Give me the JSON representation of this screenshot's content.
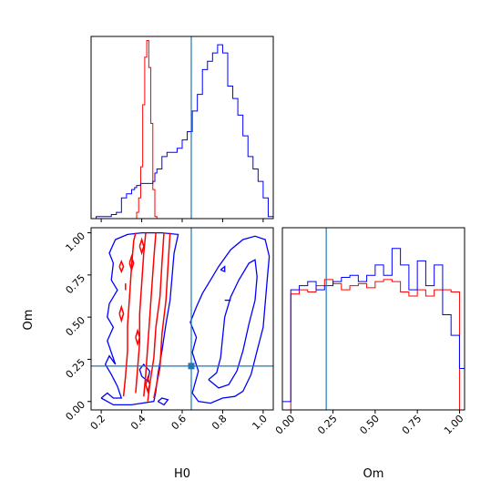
{
  "chart_data": {
    "type": "corner",
    "title": "",
    "parameters": [
      "H0",
      "Om"
    ],
    "colors": {
      "series_a": "#0000ff",
      "series_b": "#ff0000",
      "truth": "#1f77b4",
      "frame": "#000000"
    },
    "truth": {
      "H0": 0.645,
      "Om": 0.21
    },
    "axes": {
      "H0": {
        "label": "H0",
        "ticks": [
          "0.2",
          "0.4",
          "0.6",
          "0.8",
          "1.0"
        ],
        "tick_values": [
          0.2,
          0.4,
          0.6,
          0.8,
          1.0
        ],
        "lim": [
          0.15,
          1.05
        ]
      },
      "Om": {
        "label": "Om",
        "ticks": [
          "0.00",
          "0.25",
          "0.50",
          "0.75",
          "1.00"
        ],
        "tick_values": [
          0.0,
          0.25,
          0.5,
          0.75,
          1.0
        ],
        "lim": [
          -0.05,
          1.03
        ]
      }
    },
    "hist_H0": {
      "bin_edges": [
        0.15,
        0.175,
        0.2,
        0.225,
        0.25,
        0.275,
        0.3,
        0.325,
        0.35,
        0.365,
        0.375,
        0.385,
        0.395,
        0.405,
        0.415,
        0.425,
        0.435,
        0.445,
        0.455,
        0.465,
        0.475,
        0.5,
        0.525,
        0.55,
        0.575,
        0.6,
        0.625,
        0.65,
        0.675,
        0.7,
        0.725,
        0.75,
        0.775,
        0.8,
        0.825,
        0.85,
        0.875,
        0.9,
        0.925,
        0.95,
        0.975,
        1.0,
        1.025,
        1.05
      ],
      "series_a": [
        0,
        1,
        1,
        1,
        2,
        3,
        10,
        12,
        14,
        15,
        16,
        16,
        17,
        17,
        17,
        17,
        17,
        17,
        18,
        22,
        24,
        30,
        32,
        32,
        34,
        38,
        42,
        52,
        60,
        72,
        76,
        80,
        84,
        80,
        64,
        58,
        50,
        40,
        30,
        24,
        18,
        10,
        1
      ],
      "series_b": [
        0,
        0,
        0,
        0,
        0,
        0,
        0,
        0,
        0,
        0,
        3,
        10,
        25,
        55,
        78,
        86,
        73,
        46,
        14,
        1,
        0,
        0,
        0,
        0,
        0,
        0,
        0,
        0,
        0,
        0,
        0,
        0,
        0,
        0,
        0,
        0,
        0,
        0,
        0,
        0,
        0,
        0,
        0
      ]
    },
    "hist_Om": {
      "bin_edges": [
        -0.05,
        0.0,
        0.05,
        0.1,
        0.15,
        0.2,
        0.25,
        0.3,
        0.35,
        0.4,
        0.45,
        0.5,
        0.55,
        0.6,
        0.65,
        0.7,
        0.75,
        0.8,
        0.85,
        0.9,
        0.95,
        1.0,
        1.03
      ],
      "series_a": [
        4,
        58,
        60,
        62,
        58,
        60,
        62,
        64,
        65,
        62,
        65,
        70,
        65,
        78,
        70,
        58,
        72,
        60,
        70,
        46,
        36,
        20
      ],
      "series_b": [
        0,
        56,
        58,
        57,
        60,
        63,
        61,
        58,
        60,
        61,
        59,
        62,
        63,
        62,
        57,
        55,
        58,
        55,
        58,
        58,
        57,
        0
      ]
    },
    "contours_a": [
      [
        [
          0.2,
          0.02
        ],
        [
          0.23,
          0.05
        ],
        [
          0.26,
          0.02
        ],
        [
          0.3,
          0.02
        ],
        [
          0.28,
          0.09
        ],
        [
          0.25,
          0.16
        ],
        [
          0.22,
          0.22
        ],
        [
          0.24,
          0.27
        ],
        [
          0.27,
          0.22
        ],
        [
          0.23,
          0.36
        ],
        [
          0.26,
          0.44
        ],
        [
          0.23,
          0.5
        ],
        [
          0.24,
          0.58
        ],
        [
          0.28,
          0.66
        ],
        [
          0.25,
          0.72
        ],
        [
          0.26,
          0.82
        ],
        [
          0.24,
          0.88
        ],
        [
          0.27,
          0.96
        ],
        [
          0.33,
          0.99
        ],
        [
          0.4,
          1.0
        ],
        [
          0.5,
          1.0
        ],
        [
          0.58,
          0.99
        ],
        [
          0.56,
          0.88
        ],
        [
          0.55,
          0.74
        ],
        [
          0.54,
          0.6
        ],
        [
          0.52,
          0.46
        ],
        [
          0.5,
          0.3
        ],
        [
          0.48,
          0.16
        ],
        [
          0.47,
          0.06
        ],
        [
          0.46,
          0.0
        ],
        [
          0.35,
          -0.02
        ],
        [
          0.26,
          -0.02
        ],
        [
          0.2,
          0.02
        ]
      ],
      [
        [
          0.4,
          0.15
        ],
        [
          0.43,
          0.12
        ],
        [
          0.44,
          0.18
        ],
        [
          0.41,
          0.22
        ],
        [
          0.39,
          0.19
        ],
        [
          0.4,
          0.15
        ]
      ],
      [
        [
          0.48,
          0.0
        ],
        [
          0.5,
          0.02
        ],
        [
          0.53,
          0.01
        ],
        [
          0.51,
          -0.02
        ],
        [
          0.48,
          0.0
        ]
      ],
      [
        [
          0.65,
          0.05
        ],
        [
          0.68,
          0.18
        ],
        [
          0.65,
          0.29
        ],
        [
          0.67,
          0.38
        ],
        [
          0.64,
          0.47
        ],
        [
          0.67,
          0.56
        ],
        [
          0.7,
          0.64
        ],
        [
          0.74,
          0.72
        ],
        [
          0.78,
          0.8
        ],
        [
          0.84,
          0.9
        ],
        [
          0.9,
          0.96
        ],
        [
          0.96,
          0.98
        ],
        [
          1.01,
          0.96
        ],
        [
          1.03,
          0.86
        ],
        [
          1.02,
          0.72
        ],
        [
          1.01,
          0.58
        ],
        [
          1.0,
          0.44
        ],
        [
          0.97,
          0.3
        ],
        [
          0.94,
          0.16
        ],
        [
          0.9,
          0.06
        ],
        [
          0.86,
          0.03
        ],
        [
          0.8,
          0.02
        ],
        [
          0.74,
          -0.01
        ],
        [
          0.68,
          0.0
        ],
        [
          0.65,
          0.05
        ]
      ],
      [
        [
          0.73,
          0.13
        ],
        [
          0.77,
          0.17
        ],
        [
          0.79,
          0.26
        ],
        [
          0.8,
          0.38
        ],
        [
          0.81,
          0.5
        ],
        [
          0.84,
          0.62
        ],
        [
          0.88,
          0.72
        ],
        [
          0.93,
          0.82
        ],
        [
          0.96,
          0.84
        ],
        [
          0.97,
          0.74
        ],
        [
          0.96,
          0.6
        ],
        [
          0.93,
          0.46
        ],
        [
          0.9,
          0.3
        ],
        [
          0.87,
          0.18
        ],
        [
          0.83,
          0.1
        ],
        [
          0.78,
          0.08
        ],
        [
          0.73,
          0.13
        ]
      ],
      [
        [
          0.79,
          0.78
        ],
        [
          0.81,
          0.8
        ],
        [
          0.81,
          0.77
        ],
        [
          0.79,
          0.78
        ]
      ],
      [
        [
          0.81,
          0.6
        ],
        [
          0.84,
          0.6
        ]
      ]
    ],
    "contours_b": [
      [
        [
          0.31,
          0.03
        ],
        [
          0.32,
          0.15
        ],
        [
          0.33,
          0.3
        ],
        [
          0.33,
          0.45
        ],
        [
          0.34,
          0.62
        ],
        [
          0.35,
          0.8
        ],
        [
          0.36,
          0.95
        ],
        [
          0.37,
          1.0
        ]
      ],
      [
        [
          0.47,
          1.0
        ],
        [
          0.46,
          0.85
        ],
        [
          0.45,
          0.68
        ],
        [
          0.44,
          0.5
        ],
        [
          0.43,
          0.33
        ],
        [
          0.42,
          0.16
        ],
        [
          0.41,
          0.03
        ]
      ],
      [
        [
          0.37,
          0.05
        ],
        [
          0.38,
          0.2
        ],
        [
          0.39,
          0.35
        ],
        [
          0.39,
          0.52
        ],
        [
          0.4,
          0.7
        ],
        [
          0.41,
          0.88
        ],
        [
          0.42,
          1.0
        ]
      ],
      [
        [
          0.51,
          1.0
        ],
        [
          0.5,
          0.82
        ],
        [
          0.49,
          0.62
        ],
        [
          0.47,
          0.44
        ],
        [
          0.46,
          0.26
        ],
        [
          0.44,
          0.1
        ],
        [
          0.43,
          0.0
        ]
      ],
      [
        [
          0.54,
          1.0
        ],
        [
          0.53,
          0.8
        ],
        [
          0.52,
          0.6
        ],
        [
          0.5,
          0.4
        ],
        [
          0.49,
          0.2
        ],
        [
          0.46,
          0.02
        ]
      ],
      [
        [
          0.39,
          0.92
        ],
        [
          0.4,
          0.96
        ],
        [
          0.41,
          0.92
        ],
        [
          0.4,
          0.88
        ],
        [
          0.39,
          0.92
        ]
      ],
      [
        [
          0.34,
          0.82
        ],
        [
          0.35,
          0.86
        ],
        [
          0.36,
          0.82
        ],
        [
          0.35,
          0.78
        ],
        [
          0.34,
          0.82
        ]
      ],
      [
        [
          0.37,
          0.38
        ],
        [
          0.38,
          0.42
        ],
        [
          0.39,
          0.38
        ],
        [
          0.38,
          0.34
        ],
        [
          0.37,
          0.38
        ]
      ],
      [
        [
          0.29,
          0.52
        ],
        [
          0.3,
          0.56
        ],
        [
          0.31,
          0.52
        ],
        [
          0.3,
          0.48
        ],
        [
          0.29,
          0.52
        ]
      ],
      [
        [
          0.42,
          0.1
        ],
        [
          0.43,
          0.14
        ],
        [
          0.44,
          0.1
        ],
        [
          0.43,
          0.06
        ],
        [
          0.42,
          0.1
        ]
      ],
      [
        [
          0.32,
          0.66
        ],
        [
          0.32,
          0.7
        ]
      ],
      [
        [
          0.29,
          0.8
        ],
        [
          0.3,
          0.83
        ],
        [
          0.31,
          0.8
        ],
        [
          0.3,
          0.77
        ],
        [
          0.29,
          0.8
        ]
      ]
    ]
  }
}
